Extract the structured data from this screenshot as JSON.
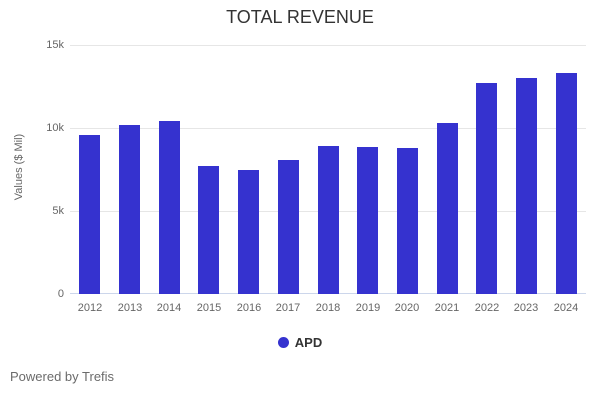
{
  "chart_data": {
    "type": "bar",
    "title": "TOTAL REVENUE",
    "xlabel": "",
    "ylabel": "Values ($ Mil)",
    "series_name": "APD",
    "categories": [
      "2012",
      "2013",
      "2014",
      "2015",
      "2016",
      "2017",
      "2018",
      "2019",
      "2020",
      "2021",
      "2022",
      "2023",
      "2024"
    ],
    "values": [
      9600,
      10200,
      10450,
      7700,
      7450,
      8100,
      8900,
      8870,
      8800,
      10320,
      12700,
      13000,
      13300
    ],
    "ylim": [
      0,
      15000
    ],
    "yticks": [
      {
        "value": 0,
        "label": "0"
      },
      {
        "value": 5000,
        "label": "5k"
      },
      {
        "value": 10000,
        "label": "10k"
      },
      {
        "value": 15000,
        "label": "15k"
      }
    ],
    "grid": true,
    "legend_position": "bottom"
  },
  "colors": {
    "bar": "#3532cf",
    "grid": "#e6e6e6",
    "axis_line": "#ccd6eb",
    "tick_label": "#666666",
    "title_text": "#333333",
    "legend_text": "#333333",
    "footer_text": "#6b6b6b"
  },
  "footer": {
    "text": "Powered by Trefis"
  }
}
